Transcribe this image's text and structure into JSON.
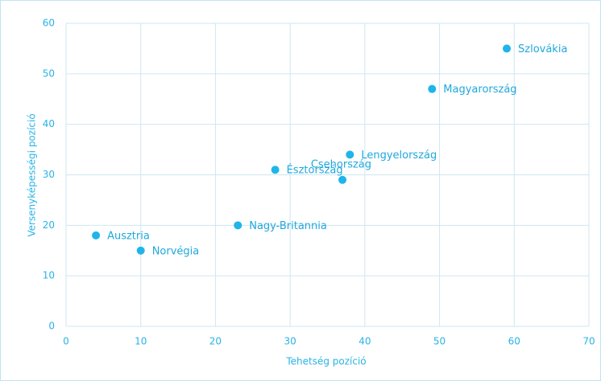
{
  "chart_data": {
    "type": "scatter",
    "x_label": "Tehetség pozíció",
    "y_label": "Versenyképességi pozíció",
    "point_labels": [
      "Szlovákia",
      "Magyarország",
      "Lengyelország",
      "Csehország",
      "Észtország",
      "Nagy-Britannia",
      "Ausztria",
      "Norvégia"
    ],
    "x": [
      59,
      49,
      38,
      37,
      28,
      23,
      4,
      10
    ],
    "values": [
      55,
      47,
      34,
      29,
      31,
      20,
      18,
      15
    ],
    "color": "#1fb5ea",
    "xlim": [
      0,
      70
    ],
    "xticks": [
      0,
      10,
      20,
      30,
      40,
      50,
      60,
      70
    ],
    "ylim": [
      0,
      60
    ],
    "yticks": [
      0,
      10,
      20,
      30,
      40,
      50,
      60
    ],
    "grid": true
  }
}
